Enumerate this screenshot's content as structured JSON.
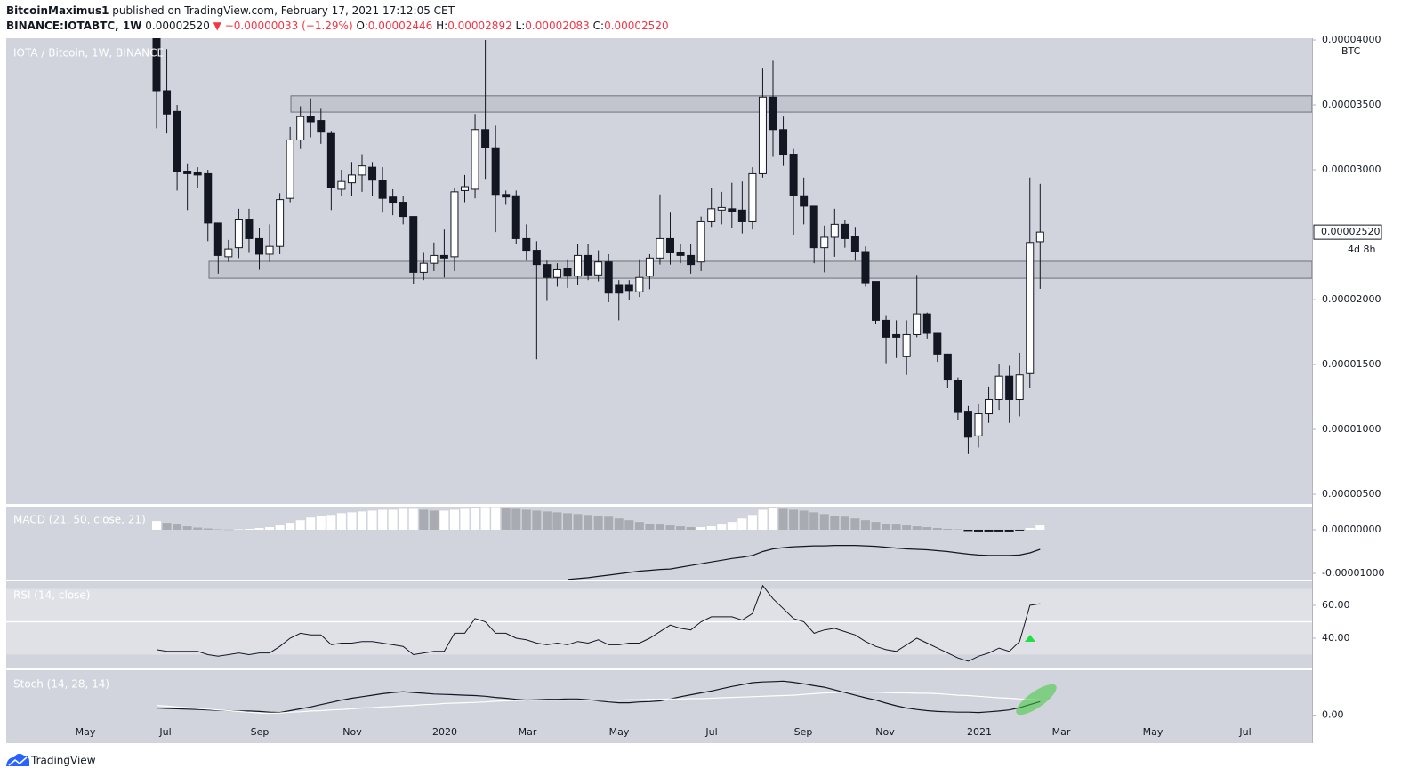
{
  "header": {
    "author": "BitcoinMaximus1",
    "published": "published on TradingView.com, February 17, 2021 17:12:05 CET",
    "symbol": "BINANCE:IOTABTC, 1W",
    "price": "0.00002520",
    "change": "▼ −0.00000033 (−1.29%)",
    "o_label": "O:",
    "o": "0.00002446",
    "h_label": "H:",
    "h": "0.00002892",
    "l_label": "L:",
    "l": "0.00002083",
    "c_label": "C:",
    "c": "0.00002520"
  },
  "footer": {
    "brand": "TradingView"
  },
  "chart_data": [
    {
      "type": "candlestick",
      "title": "IOTA / Bitcoin, 1W, BINANCE",
      "y_unit": "BTC",
      "last_price_label": "0.00002520",
      "countdown": "4d 8h",
      "up_color": "#ffffff",
      "down_color": "#131722",
      "wick_color": "#131722",
      "x_labels": [
        "May",
        "Jul",
        "Sep",
        "Nov",
        "2020",
        "Mar",
        "May",
        "Jul",
        "Sep",
        "Nov",
        "2021",
        "Mar",
        "May",
        "Jul"
      ],
      "open": [
        4.02e-05,
        3.61e-05,
        3.45e-05,
        2.99e-05,
        2.98e-05,
        2.97e-05,
        2.59e-05,
        2.33e-05,
        2.4e-05,
        2.62e-05,
        2.47e-05,
        2.35e-05,
        2.41e-05,
        2.78e-05,
        3.23e-05,
        3.41e-05,
        3.38e-05,
        3.28e-05,
        2.85e-05,
        2.9e-05,
        2.96e-05,
        3.02e-05,
        2.92e-05,
        2.79e-05,
        2.75e-05,
        2.64e-05,
        2.21e-05,
        2.28e-05,
        2.34e-05,
        2.33e-05,
        2.84e-05,
        2.85e-05,
        3.31e-05,
        3.17e-05,
        2.81e-05,
        2.8e-05,
        2.47e-05,
        2.38e-05,
        2.27e-05,
        2.17e-05,
        2.24e-05,
        2.18e-05,
        2.34e-05,
        2.19e-05,
        2.29e-05,
        2.11e-05,
        2.11e-05,
        2.06e-05,
        2.18e-05,
        2.32e-05,
        2.47e-05,
        2.36e-05,
        2.34e-05,
        2.29e-05,
        2.6e-05,
        2.69e-05,
        2.7e-05,
        2.69e-05,
        2.6e-05,
        2.97e-05,
        3.56e-05,
        3.31e-05,
        3.12e-05,
        2.8e-05,
        2.72e-05,
        2.4e-05,
        2.48e-05,
        2.58e-05,
        2.49e-05,
        2.37e-05,
        2.14e-05,
        1.84e-05,
        1.73e-05,
        1.56e-05,
        1.73e-05,
        1.89e-05,
        1.74e-05,
        1.58e-05,
        1.38e-05,
        1.14e-05,
        9.5e-06,
        1.12e-05,
        1.23e-05,
        1.41e-05,
        1.23e-05,
        1.43e-05,
        2.446e-05
      ],
      "high": [
        4.1e-05,
        3.93e-05,
        3.5e-05,
        3.05e-05,
        3.02e-05,
        3e-05,
        2.59e-05,
        2.46e-05,
        2.7e-05,
        2.7e-05,
        2.55e-05,
        2.58e-05,
        2.82e-05,
        3.33e-05,
        3.49e-05,
        3.55e-05,
        3.47e-05,
        3.3e-05,
        3e-05,
        3.06e-05,
        3.12e-05,
        3.06e-05,
        3.02e-05,
        2.85e-05,
        2.8e-05,
        2.64e-05,
        2.36e-05,
        2.44e-05,
        2.54e-05,
        2.86e-05,
        2.96e-05,
        3.43e-05,
        4e-05,
        3.34e-05,
        2.84e-05,
        2.84e-05,
        2.58e-05,
        2.45e-05,
        2.3e-05,
        2.28e-05,
        2.31e-05,
        2.43e-05,
        2.43e-05,
        2.38e-05,
        2.35e-05,
        2.15e-05,
        2.15e-05,
        2.31e-05,
        2.35e-05,
        2.81e-05,
        2.67e-05,
        2.43e-05,
        2.43e-05,
        2.64e-05,
        2.86e-05,
        2.83e-05,
        2.9e-05,
        2.91e-05,
        3.02e-05,
        3.78e-05,
        3.84e-05,
        3.41e-05,
        3.16e-05,
        2.94e-05,
        2.72e-05,
        2.57e-05,
        2.7e-05,
        2.61e-05,
        2.56e-05,
        2.41e-05,
        2.14e-05,
        1.88e-05,
        1.84e-05,
        1.84e-05,
        2.19e-05,
        1.9e-05,
        1.74e-05,
        1.58e-05,
        1.4e-05,
        1.18e-05,
        1.2e-05,
        1.33e-05,
        1.5e-05,
        1.49e-05,
        1.59e-05,
        2.94e-05,
        2.892e-05
      ],
      "low": [
        3.32e-05,
        3.28e-05,
        2.84e-05,
        2.69e-05,
        2.86e-05,
        2.45e-05,
        2.2e-05,
        2.29e-05,
        2.32e-05,
        2.36e-05,
        2.23e-05,
        2.29e-05,
        2.35e-05,
        2.75e-05,
        3.16e-05,
        3.25e-05,
        3.2e-05,
        2.69e-05,
        2.8e-05,
        2.8e-05,
        2.83e-05,
        2.8e-05,
        2.67e-05,
        2.65e-05,
        2.58e-05,
        2.12e-05,
        2.15e-05,
        2.22e-05,
        2.17e-05,
        2.22e-05,
        2.75e-05,
        2.78e-05,
        2.93e-05,
        2.52e-05,
        2.73e-05,
        2.43e-05,
        2.3e-05,
        1.54e-05,
        1.99e-05,
        2.1e-05,
        2.09e-05,
        2.11e-05,
        2.15e-05,
        2.14e-05,
        1.98e-05,
        1.84e-05,
        2e-05,
        2.02e-05,
        2.08e-05,
        2.27e-05,
        2.27e-05,
        2.28e-05,
        2.2e-05,
        2.22e-05,
        2.56e-05,
        2.58e-05,
        2.55e-05,
        2.51e-05,
        2.54e-05,
        2.94e-05,
        3.1e-05,
        3.03e-05,
        2.5e-05,
        2.58e-05,
        2.28e-05,
        2.21e-05,
        2.33e-05,
        2.4e-05,
        2.3e-05,
        2.1e-05,
        1.81e-05,
        1.51e-05,
        1.55e-05,
        1.42e-05,
        1.71e-05,
        1.7e-05,
        1.52e-05,
        1.32e-05,
        1.07e-05,
        8.1e-06,
        8.6e-06,
        1.05e-05,
        1.15e-05,
        1.05e-05,
        1.1e-05,
        1.32e-05,
        2.083e-05
      ],
      "close": [
        3.61e-05,
        3.43e-05,
        2.99e-05,
        2.97e-05,
        2.96e-05,
        2.59e-05,
        2.34e-05,
        2.39e-05,
        2.62e-05,
        2.47e-05,
        2.35e-05,
        2.41e-05,
        2.77e-05,
        3.23e-05,
        3.41e-05,
        3.37e-05,
        3.29e-05,
        2.86e-05,
        2.91e-05,
        2.96e-05,
        3.03e-05,
        2.92e-05,
        2.78e-05,
        2.75e-05,
        2.64e-05,
        2.21e-05,
        2.28e-05,
        2.34e-05,
        2.32e-05,
        2.83e-05,
        2.87e-05,
        3.31e-05,
        3.17e-05,
        2.81e-05,
        2.79e-05,
        2.47e-05,
        2.38e-05,
        2.27e-05,
        2.17e-05,
        2.23e-05,
        2.18e-05,
        2.34e-05,
        2.19e-05,
        2.29e-05,
        2.05e-05,
        2.05e-05,
        2.07e-05,
        2.17e-05,
        2.32e-05,
        2.47e-05,
        2.36e-05,
        2.34e-05,
        2.27e-05,
        2.6e-05,
        2.7e-05,
        2.71e-05,
        2.68e-05,
        2.6e-05,
        2.97e-05,
        3.56e-05,
        3.31e-05,
        3.12e-05,
        2.8e-05,
        2.72e-05,
        2.4e-05,
        2.48e-05,
        2.58e-05,
        2.47e-05,
        2.37e-05,
        2.13e-05,
        1.84e-05,
        1.71e-05,
        1.71e-05,
        1.73e-05,
        1.89e-05,
        1.74e-05,
        1.58e-05,
        1.38e-05,
        1.13e-05,
        9.4e-06,
        1.12e-05,
        1.23e-05,
        1.41e-05,
        1.23e-05,
        1.42e-05,
        2.44e-05,
        2.52e-05
      ],
      "zones": [
        {
          "top": 3.57e-05,
          "bottom": 3.445e-05
        },
        {
          "top": 2.295e-05,
          "bottom": 2.164e-05
        }
      ],
      "ylim": [
        4.25e-06,
        4.014e-05
      ],
      "yticks": [
        {
          "value": 4e-05,
          "label": "0.00004000"
        },
        {
          "value": 3.5e-05,
          "label": "0.00003500"
        },
        {
          "value": 3e-05,
          "label": "0.00003000"
        },
        {
          "value": 2e-05,
          "label": "0.00002000"
        },
        {
          "value": 1.5e-05,
          "label": "0.00001500"
        },
        {
          "value": 1e-05,
          "label": "0.00001000"
        },
        {
          "value": 5e-06,
          "label": "0.00000500"
        }
      ]
    },
    {
      "type": "macd",
      "title": "MACD (21, 50, close, 21)",
      "rising_color": "#ffffff",
      "falling_color": "#a9abb3",
      "negative_color": "#131722",
      "line_color": "#131722",
      "histogram": [
        2e-06,
        1.6e-06,
        1.2e-06,
        8e-07,
        5e-07,
        3e-07,
        1e-07,
        4e-08,
        1e-07,
        2e-07,
        4e-07,
        6e-07,
        1e-06,
        1.6e-06,
        2.2e-06,
        2.8e-06,
        3.2e-06,
        3.4e-06,
        3.8e-06,
        4e-06,
        4.2e-06,
        4.4e-06,
        4.6e-06,
        4.6e-06,
        4.8e-06,
        4.8e-06,
        4.6e-06,
        4.4e-06,
        4.4e-06,
        4.6e-06,
        4.8e-06,
        5e-06,
        5.2e-06,
        5.2e-06,
        5e-06,
        4.8e-06,
        4.6e-06,
        4.4e-06,
        4.2e-06,
        4e-06,
        3.8e-06,
        3.6e-06,
        3.4e-06,
        3.2e-06,
        3e-06,
        2.6e-06,
        2.2e-06,
        1.8e-06,
        1.4e-06,
        1.2e-06,
        1e-06,
        8e-07,
        6e-07,
        6e-07,
        8e-07,
        1.2e-06,
        1.8e-06,
        2.6e-06,
        3.4e-06,
        4.6e-06,
        5e-06,
        4.8e-06,
        4.6e-06,
        4.4e-06,
        4e-06,
        3.6e-06,
        3.2e-06,
        3e-06,
        2.6e-06,
        2.2e-06,
        1.8e-06,
        1.4e-06,
        1.2e-06,
        1e-06,
        8e-07,
        6e-07,
        4e-07,
        2e-07,
        1e-07,
        -3e-07,
        -4e-07,
        -4e-07,
        -4e-07,
        -4e-07,
        -2e-07,
        4e-07,
        1e-06
      ],
      "macd": [
        null,
        null,
        null,
        null,
        null,
        null,
        null,
        null,
        null,
        null,
        null,
        null,
        null,
        null,
        null,
        null,
        null,
        null,
        null,
        null,
        null,
        null,
        null,
        null,
        null,
        null,
        null,
        null,
        null,
        null,
        null,
        null,
        null,
        null,
        null,
        null,
        null,
        null,
        null,
        null,
        -1.14e-05,
        -1.12e-05,
        -1.1e-05,
        -1.07e-05,
        -1.04e-05,
        -1.01e-05,
        -9.8e-06,
        -9.5e-06,
        -9.3e-06,
        -9.1e-06,
        -9e-06,
        -8.6e-06,
        -8.2e-06,
        -7.8e-06,
        -7.4e-06,
        -7e-06,
        -6.6e-06,
        -6.3e-06,
        -5.9e-06,
        -5e-06,
        -4.4e-06,
        -4.1e-06,
        -3.9e-06,
        -3.8e-06,
        -3.7e-06,
        -3.7e-06,
        -3.6e-06,
        -3.6e-06,
        -3.6e-06,
        -3.7e-06,
        -3.8e-06,
        -4e-06,
        -4.2e-06,
        -4.4e-06,
        -4.5e-06,
        -4.6e-06,
        -4.8e-06,
        -5e-06,
        -5.3e-06,
        -5.6e-06,
        -5.8e-06,
        -5.9e-06,
        -5.9e-06,
        -5.9e-06,
        -5.8e-06,
        -5.3e-06,
        -4.5e-06
      ],
      "ylim": [
        -1.143e-05,
        5.3e-06
      ],
      "yticks": [
        {
          "value": 0,
          "label": "0.00000000"
        },
        {
          "value": -1e-05,
          "label": "-0.00001000"
        }
      ]
    },
    {
      "type": "line",
      "title": "RSI (14, close)",
      "color": "#131722",
      "band": [
        30,
        70
      ],
      "band_color": "#dfe1e7",
      "values": [
        33,
        32,
        32,
        32,
        32,
        30,
        29,
        30,
        31,
        30,
        31,
        31,
        35,
        40,
        43,
        42,
        42,
        36,
        37,
        37,
        38,
        38,
        37,
        36,
        35,
        30,
        31,
        32,
        32,
        43,
        43,
        52,
        50,
        43,
        43,
        40,
        39,
        37,
        36,
        37,
        36,
        38,
        37,
        39,
        36,
        36,
        37,
        37,
        40,
        44,
        48,
        46,
        45,
        50,
        53,
        53,
        53,
        51,
        55,
        72,
        64,
        58,
        52,
        50,
        43,
        45,
        46,
        44,
        42,
        38,
        35,
        33,
        32,
        36,
        40,
        37,
        34,
        31,
        28,
        26,
        29,
        31,
        34,
        32,
        38,
        60,
        61
      ],
      "ylim": [
        21.6,
        74.6
      ],
      "yticks": [
        {
          "value": 60,
          "label": "60.00"
        },
        {
          "value": 40,
          "label": "40.00"
        }
      ]
    },
    {
      "type": "line",
      "title": "Stoch (14, 28, 14)",
      "lines": [
        {
          "color": "#131722",
          "values": [
            19,
            18,
            17,
            16,
            15,
            14,
            13,
            12,
            11,
            11,
            10,
            8,
            7,
            12,
            17,
            22,
            28,
            34,
            40,
            45,
            49,
            53,
            57,
            60,
            62,
            60,
            58,
            56,
            55,
            54,
            53,
            52,
            50,
            47,
            45,
            42,
            40,
            41,
            42,
            42,
            43,
            43,
            41,
            38,
            35,
            33,
            33,
            35,
            36,
            38,
            43,
            49,
            54,
            59,
            64,
            70,
            76,
            81,
            86,
            88,
            89,
            90,
            87,
            83,
            78,
            74,
            67,
            60,
            53,
            46,
            40,
            32,
            25,
            19,
            15,
            12,
            10,
            9,
            8,
            8,
            7,
            9,
            11,
            14,
            20,
            28,
            36
          ]
        },
        {
          "color": "#ffffff",
          "values": [
            26,
            24,
            22,
            20,
            18,
            16,
            14,
            12,
            10,
            8,
            6,
            5,
            6,
            8,
            9,
            11,
            12,
            14,
            15,
            17,
            19,
            20,
            22,
            23,
            25,
            26,
            28,
            29,
            31,
            32,
            33,
            34,
            35,
            37,
            38,
            39,
            40,
            40,
            40,
            40,
            40,
            40,
            40,
            40,
            40,
            40,
            41,
            41,
            42,
            42,
            43,
            43,
            44,
            44,
            45,
            46,
            47,
            48,
            49,
            50,
            51,
            52,
            53,
            55,
            57,
            59,
            60,
            62,
            62,
            61,
            61,
            60,
            59,
            59,
            58,
            58,
            57,
            55,
            53,
            52,
            50,
            48,
            46,
            45,
            43,
            42,
            40
          ]
        }
      ],
      "ylim": [
        -73.8,
        119
      ],
      "yticks": [
        {
          "value": 0,
          "label": "0.00"
        }
      ]
    }
  ]
}
